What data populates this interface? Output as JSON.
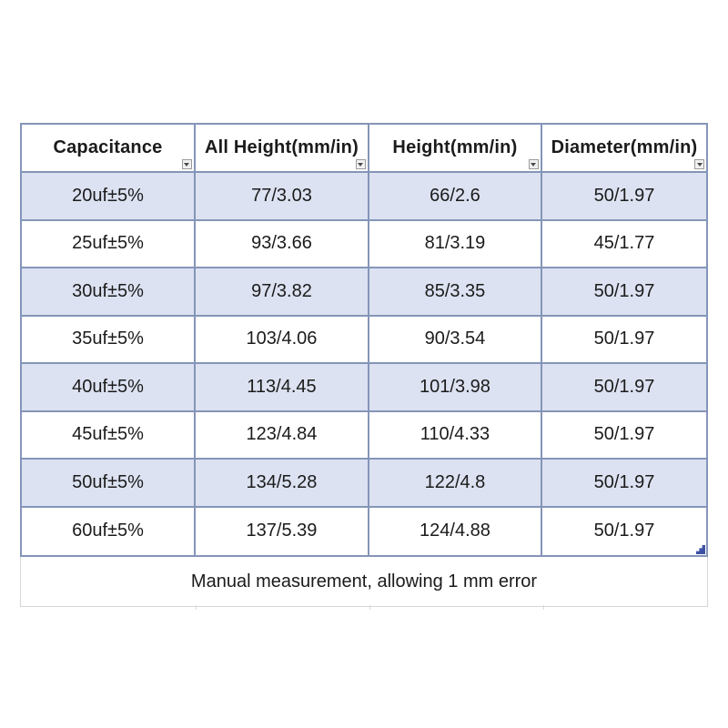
{
  "colors": {
    "grid_line": "#8595b8",
    "row_alt_fill": "#dce2f1",
    "row_fill": "#ffffff",
    "header_fill": "#ffffff",
    "text": "#1b1b1b",
    "footnote_border": "#d6d6d6",
    "resize_handle": "#3e52a4"
  },
  "icons": {
    "filter_dropdown": "chevron-down-triangle",
    "resize_handle": "staircase-corner"
  },
  "table": {
    "columns": [
      "Capacitance",
      "All Height(mm/in)",
      "Height(mm/in)",
      "Diameter(mm/in)"
    ],
    "rows": [
      [
        "20uf±5%",
        "77/3.03",
        "66/2.6",
        "50/1.97"
      ],
      [
        "25uf±5%",
        "93/3.66",
        "81/3.19",
        "45/1.77"
      ],
      [
        "30uf±5%",
        "97/3.82",
        "85/3.35",
        "50/1.97"
      ],
      [
        "35uf±5%",
        "103/4.06",
        "90/3.54",
        "50/1.97"
      ],
      [
        "40uf±5%",
        "113/4.45",
        "101/3.98",
        "50/1.97"
      ],
      [
        "45uf±5%",
        "123/4.84",
        "110/4.33",
        "50/1.97"
      ],
      [
        "50uf±5%",
        "134/5.28",
        "122/4.8",
        "50/1.97"
      ],
      [
        "60uf±5%",
        "137/5.39",
        "124/4.88",
        "50/1.97"
      ]
    ],
    "footnote": "Manual measurement, allowing 1 mm error"
  }
}
